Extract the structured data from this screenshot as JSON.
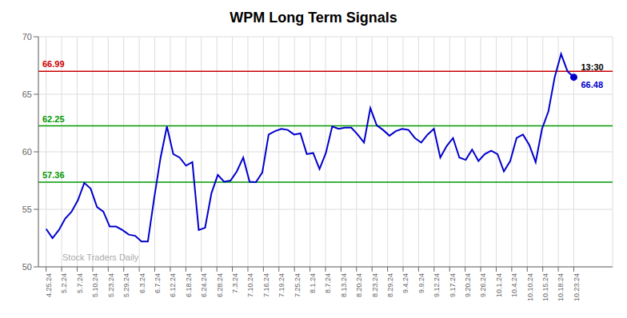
{
  "chart_data": {
    "type": "line",
    "title": "WPM Long Term Signals",
    "x": [
      0,
      0.409639,
      0.819277,
      1.228916,
      1.638554,
      2.048193,
      2.457831,
      2.86747,
      3.277108,
      3.686747,
      4.096386,
      4.506024,
      4.915663,
      5.325301,
      5.73494,
      6.144578,
      6.554217,
      6.963855,
      7.373494,
      7.783133,
      8.192771,
      8.60241,
      9.012048,
      9.421687,
      9.831325,
      10.240964,
      10.650602,
      11.060241,
      11.46988,
      11.879518,
      12.289157,
      12.698795,
      13.108434,
      13.518072,
      13.927711,
      14.337349,
      14.746988,
      15.156627,
      15.566265,
      15.975904,
      16.385542,
      16.795181,
      17.204819,
      17.614458,
      18.024096,
      18.433735,
      18.843373,
      19.253012,
      19.662651,
      20.072289,
      20.481928,
      20.891566,
      21.301205,
      21.710843,
      22.120482,
      22.53012,
      22.939759,
      23.349398,
      23.759036,
      24.168675,
      24.578313,
      24.987952,
      25.39759,
      25.807229,
      26.216867,
      26.626506,
      27.036145,
      27.445783,
      27.855422,
      28.26506,
      28.674699,
      29.084337,
      29.493976,
      29.903614,
      30.313253,
      30.722892,
      31.13253,
      31.542169,
      31.951807,
      32.361446,
      32.771084,
      33.180723,
      33.590361,
      34
    ],
    "values": [
      53.3,
      52.5,
      53.2,
      54.2,
      54.8,
      55.8,
      57.3,
      56.8,
      55.2,
      54.8,
      53.5,
      53.5,
      53.2,
      52.8,
      52.7,
      52.2,
      52.2,
      56.0,
      59.5,
      62.2,
      59.8,
      59.5,
      58.8,
      59.1,
      53.2,
      53.4,
      56.4,
      58.0,
      57.4,
      57.5,
      58.3,
      59.5,
      57.4,
      57.36,
      58.2,
      61.5,
      61.8,
      62.0,
      61.9,
      61.5,
      61.6,
      59.8,
      59.9,
      58.5,
      59.9,
      62.2,
      62.0,
      62.1,
      62.1,
      61.5,
      60.8,
      63.8,
      62.3,
      61.9,
      61.4,
      61.8,
      62.0,
      61.9,
      61.2,
      60.8,
      61.5,
      62.0,
      59.5,
      60.5,
      61.2,
      59.5,
      59.3,
      60.2,
      59.2,
      59.8,
      60.1,
      59.8,
      58.3,
      59.2,
      61.2,
      61.5,
      60.6,
      59.1,
      62.0,
      63.5,
      66.5,
      68.5,
      67.0,
      66.48
    ],
    "color": "#0000cc",
    "xlim": [
      -0.5,
      36.5
    ],
    "xticks": [
      {
        "value": 0,
        "label": "4.25.24"
      },
      {
        "value": 1,
        "label": "5.2.24"
      },
      {
        "value": 2,
        "label": "5.7.24"
      },
      {
        "value": 3,
        "label": "5.10.24"
      },
      {
        "value": 4,
        "label": "5.23.24"
      },
      {
        "value": 5,
        "label": "5.29.24"
      },
      {
        "value": 6,
        "label": "6.3.24"
      },
      {
        "value": 7,
        "label": "6.7.24"
      },
      {
        "value": 8,
        "label": "6.12.24"
      },
      {
        "value": 9,
        "label": "6.18.24"
      },
      {
        "value": 10,
        "label": "6.24.24"
      },
      {
        "value": 11,
        "label": "6.28.24"
      },
      {
        "value": 12,
        "label": "7.3.24"
      },
      {
        "value": 13,
        "label": "7.10.24"
      },
      {
        "value": 14,
        "label": "7.16.24"
      },
      {
        "value": 15,
        "label": "7.19.24"
      },
      {
        "value": 16,
        "label": "7.25.24"
      },
      {
        "value": 17,
        "label": "8.1.24"
      },
      {
        "value": 18,
        "label": "8.7.24"
      },
      {
        "value": 19,
        "label": "8.13.24"
      },
      {
        "value": 20,
        "label": "8.20.24"
      },
      {
        "value": 21,
        "label": "8.23.24"
      },
      {
        "value": 22,
        "label": "8.29.24"
      },
      {
        "value": 23,
        "label": "9.4.24"
      },
      {
        "value": 24,
        "label": "9.9.24"
      },
      {
        "value": 25,
        "label": "9.12.24"
      },
      {
        "value": 26,
        "label": "9.17.24"
      },
      {
        "value": 27,
        "label": "9.20.24"
      },
      {
        "value": 28,
        "label": "9.26.24"
      },
      {
        "value": 29,
        "label": "10.1.24"
      },
      {
        "value": 30,
        "label": "10.4.24"
      },
      {
        "value": 31,
        "label": "10.10.24"
      },
      {
        "value": 32,
        "label": "10.15.24"
      },
      {
        "value": 33,
        "label": "10.18.24"
      },
      {
        "value": 34,
        "label": "10.23.24"
      }
    ],
    "ylim": [
      50,
      70
    ],
    "yticks": [
      50,
      55,
      60,
      65,
      70
    ],
    "grid": true,
    "reference_lines": [
      {
        "value": 66.99,
        "label": "66.99",
        "color": "#cc0000"
      },
      {
        "value": 62.25,
        "label": "62.25",
        "color": "#009900"
      },
      {
        "value": 57.36,
        "label": "57.36",
        "color": "#009900"
      }
    ],
    "end_point": {
      "label": "13:30",
      "value_label": "66.48"
    },
    "watermark": "Stock Traders Daily"
  }
}
